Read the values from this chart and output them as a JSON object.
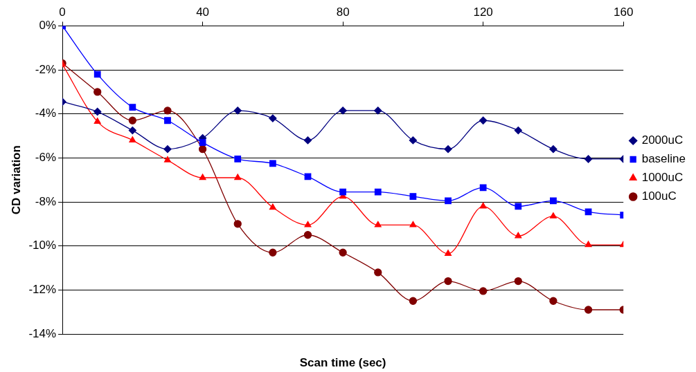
{
  "chart_data": {
    "type": "line",
    "xlabel": "Scan time (sec)",
    "ylabel": "CD variation",
    "x": [
      0,
      10,
      20,
      30,
      40,
      50,
      60,
      70,
      80,
      90,
      100,
      110,
      120,
      130,
      140,
      150,
      160
    ],
    "xlim": [
      0,
      160
    ],
    "xticks": [
      0,
      40,
      80,
      120,
      160
    ],
    "ylim": [
      -14,
      0
    ],
    "yticks": [
      {
        "value": -14,
        "label": "-14%"
      },
      {
        "value": -12,
        "label": "-12%"
      },
      {
        "value": -10,
        "label": "-10%"
      },
      {
        "value": -8,
        "label": "-8%"
      },
      {
        "value": -6,
        "label": "-6%"
      },
      {
        "value": -4,
        "label": "-4%"
      },
      {
        "value": -2,
        "label": "-2%"
      },
      {
        "value": 0,
        "label": "0%"
      }
    ],
    "grid": "y",
    "legend": "right",
    "series": [
      {
        "name": "2000uC",
        "color": "#000080",
        "marker": "diamond",
        "values": [
          -3.45,
          -3.9,
          -4.75,
          -5.6,
          -5.1,
          -3.85,
          -4.2,
          -5.2,
          -3.85,
          -3.85,
          -5.2,
          -5.6,
          -4.3,
          -4.75,
          -5.6,
          -6.05,
          -6.05
        ]
      },
      {
        "name": "baseline",
        "color": "#0000ff",
        "marker": "square",
        "values": [
          0,
          -2.2,
          -3.7,
          -4.3,
          -5.3,
          -6.05,
          -6.25,
          -6.85,
          -7.55,
          -7.55,
          -7.75,
          -7.95,
          -7.35,
          -8.2,
          -7.95,
          -8.45,
          -8.6
        ]
      },
      {
        "name": "1000uC",
        "color": "#ff0000",
        "marker": "triangle",
        "values": [
          -1.75,
          -4.35,
          -5.2,
          -6.1,
          -6.9,
          -6.9,
          -8.25,
          -9.05,
          -7.75,
          -9.05,
          -9.05,
          -10.35,
          -8.2,
          -9.55,
          -8.65,
          -9.95,
          -9.95
        ]
      },
      {
        "name": "100uC",
        "color": "#800000",
        "marker": "circle",
        "values": [
          -1.7,
          -3.0,
          -4.3,
          -3.85,
          -5.6,
          -9.0,
          -10.3,
          -9.5,
          -10.3,
          -11.2,
          -12.5,
          -11.6,
          -12.05,
          -11.6,
          -12.5,
          -12.9,
          -12.9
        ]
      }
    ]
  }
}
